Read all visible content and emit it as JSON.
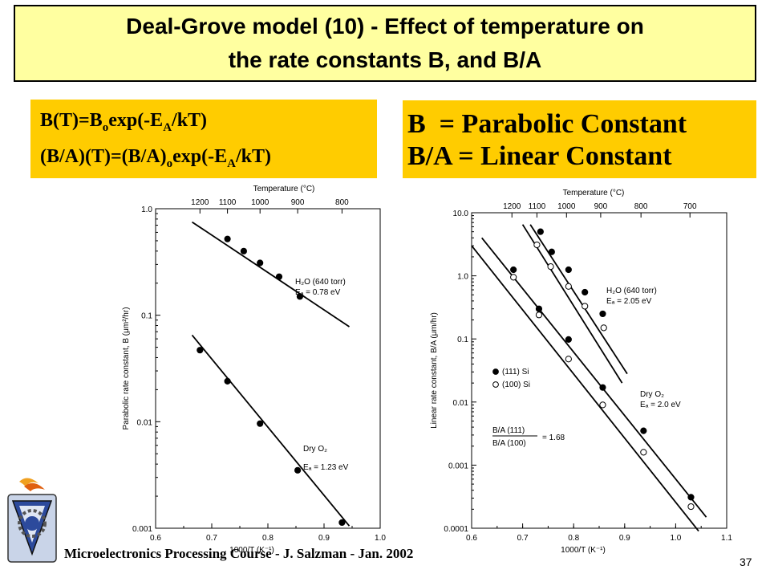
{
  "slide": {
    "title_line1": "Deal-Grove model (10) - Effect of temperature on",
    "title_line2": "the rate constants B, and B/A",
    "footer": "Microelectronics Processing Course - J. Salzman - Jan. 2002",
    "page_number": "37"
  },
  "formulas": {
    "line1": {
      "p1": "B(T)=B",
      "s1": "o",
      "p2": "exp(-E",
      "s2": "A",
      "p3": "/kT)"
    },
    "line2": {
      "p1": "(B/A)(T)=(B/A)",
      "s1": "o",
      "p2": "exp(-E",
      "s2": "A",
      "p3": "/kT)"
    }
  },
  "definitions": {
    "line1": "B  = Parabolic Constant",
    "line2": "B/A = Linear Constant"
  },
  "colors": {
    "title_bg": "#ffffa0",
    "box_bg": "#ffcc00"
  },
  "chart_data": [
    {
      "type": "scatter",
      "title": "",
      "xlabel": "1000/T (K⁻¹)",
      "ylabel": "Parabolic rate constant, B (μm²/hr)",
      "top_axis_label": "Temperature (°C)",
      "top_ticks": [
        {
          "label": "1200",
          "x": 0.679
        },
        {
          "label": "1100",
          "x": 0.728
        },
        {
          "label": "1000",
          "x": 0.786
        },
        {
          "label": "900",
          "x": 0.853
        },
        {
          "label": "800",
          "x": 0.932
        }
      ],
      "x_ticks": [
        "0.6",
        "0.7",
        "0.8",
        "0.9",
        "1.0"
      ],
      "y_ticks": [
        "0.001",
        "0.01",
        "0.1",
        "1.0"
      ],
      "xlim": [
        0.6,
        1.0
      ],
      "ylim": [
        0.001,
        1.0
      ],
      "yscale": "log",
      "series": [
        {
          "name": "H₂O (640 torr)",
          "ea_label": "Eₐ = 0.78 eV",
          "x": [
            0.728,
            0.757,
            0.786,
            0.82,
            0.857
          ],
          "y": [
            0.52,
            0.4,
            0.31,
            0.23,
            0.15
          ],
          "fit": {
            "x": [
              0.665,
              0.945
            ],
            "y": [
              0.75,
              0.078
            ]
          }
        },
        {
          "name": "Dry O₂",
          "ea_label": "Eₐ = 1.23 eV",
          "x": [
            0.679,
            0.728,
            0.786,
            0.853,
            0.932
          ],
          "y": [
            0.047,
            0.024,
            0.0096,
            0.0035,
            0.00113
          ],
          "fit": {
            "x": [
              0.665,
              0.945
            ],
            "y": [
              0.065,
              0.00105
            ]
          }
        }
      ]
    },
    {
      "type": "scatter",
      "title": "",
      "xlabel": "1000/T (K⁻¹)",
      "ylabel": "Linear rate constant, B/A (μm/hr)",
      "top_axis_label": "Temperature (°C)",
      "top_ticks": [
        {
          "label": "1200",
          "x": 0.679
        },
        {
          "label": "1100",
          "x": 0.728
        },
        {
          "label": "1000",
          "x": 0.786
        },
        {
          "label": "900",
          "x": 0.853
        },
        {
          "label": "800",
          "x": 0.932
        },
        {
          "label": "700",
          "x": 1.028
        }
      ],
      "x_ticks": [
        "0.6",
        "0.7",
        "0.8",
        "0.9",
        "1.0",
        "1.1"
      ],
      "y_ticks": [
        "0.0001",
        "0.001",
        "0.01",
        "0.1",
        "1.0",
        "10.0"
      ],
      "xlim": [
        0.6,
        1.1
      ],
      "ylim": [
        0.0001,
        10.0
      ],
      "yscale": "log",
      "legend": [
        {
          "label": "(111) Si",
          "marker": "filled"
        },
        {
          "label": "(100) Si",
          "marker": "open"
        }
      ],
      "ratio_label": {
        "num": "B/A (111)",
        "den": "B/A (100)",
        "value": "= 1.68"
      },
      "annotations": [
        {
          "text": "H₂O (640 torr)"
        },
        {
          "text": "Eₐ = 2.05 eV"
        },
        {
          "text": "Dry O₂"
        },
        {
          "text": "Eₐ = 2.0 eV"
        }
      ],
      "series": [
        {
          "name": "H₂O (111) Si",
          "marker": "filled",
          "x": [
            0.735,
            0.757,
            0.79,
            0.822,
            0.857
          ],
          "y": [
            5.0,
            2.4,
            1.25,
            0.55,
            0.25
          ],
          "fit": {
            "x": [
              0.715,
              0.905
            ],
            "y": [
              6.5,
              0.028
            ]
          }
        },
        {
          "name": "H₂O (100) Si",
          "marker": "open",
          "x": [
            0.728,
            0.755,
            0.79,
            0.822,
            0.859
          ],
          "y": [
            3.1,
            1.4,
            0.68,
            0.33,
            0.15
          ],
          "fit": {
            "x": [
              0.7,
              0.895
            ],
            "y": [
              6.5,
              0.02
            ]
          }
        },
        {
          "name": "Dry O₂ (111) Si",
          "marker": "filled",
          "x": [
            0.682,
            0.732,
            0.79,
            0.857,
            0.937,
            1.03
          ],
          "y": [
            1.25,
            0.3,
            0.098,
            0.017,
            0.0035,
            0.00031
          ],
          "fit": {
            "x": [
              0.62,
              1.06
            ],
            "y": [
              4.0,
              0.00015
            ]
          }
        },
        {
          "name": "Dry O₂ (100) Si",
          "marker": "open",
          "x": [
            0.682,
            0.732,
            0.79,
            0.857,
            0.937,
            1.03
          ],
          "y": [
            0.95,
            0.24,
            0.048,
            0.009,
            0.0016,
            0.00022
          ],
          "fit": {
            "x": [
              0.6,
              1.045
            ],
            "y": [
              3.0,
              9e-05
            ]
          }
        }
      ]
    }
  ]
}
